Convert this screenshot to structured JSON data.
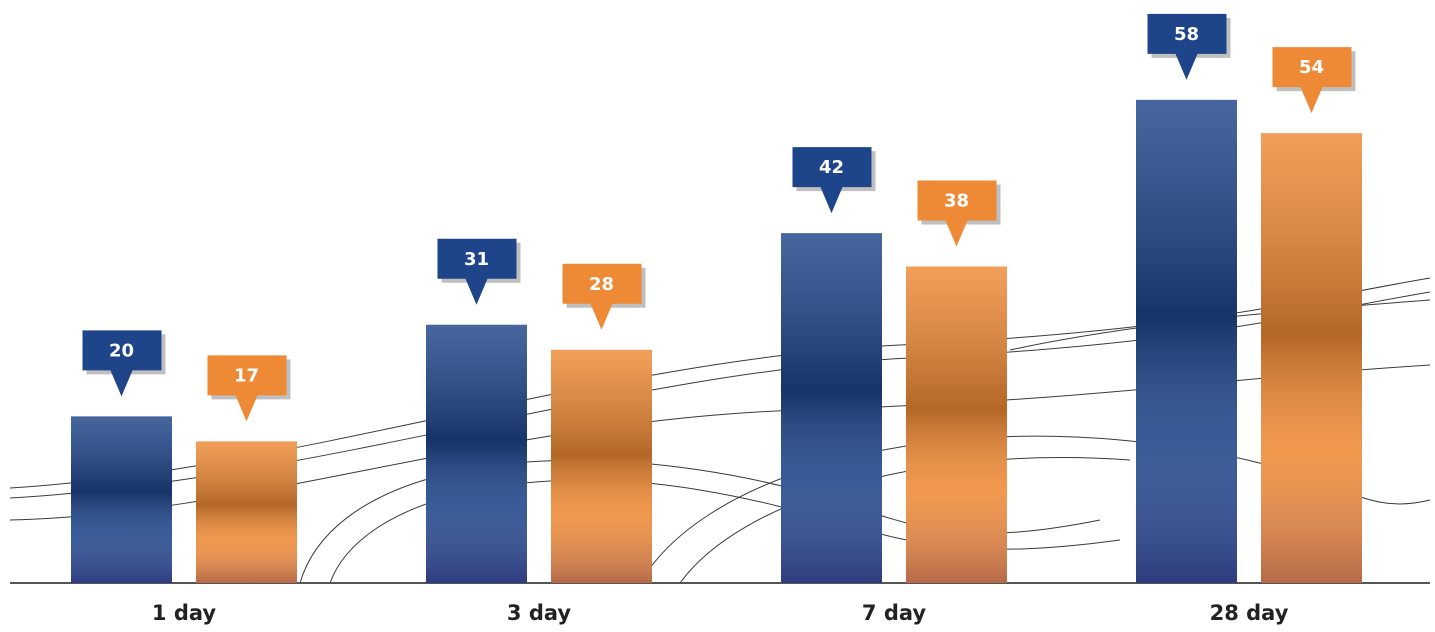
{
  "chart_data": {
    "type": "bar",
    "categories": [
      "1 day",
      "3 day",
      "7 day",
      "28 day"
    ],
    "series": [
      {
        "color": "#1e4489",
        "values": [
          20,
          31,
          42,
          58
        ]
      },
      {
        "color": "#ee8a35",
        "values": [
          17,
          28,
          38,
          54
        ]
      }
    ]
  }
}
